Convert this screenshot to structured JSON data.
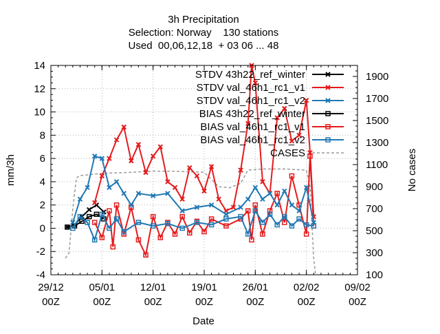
{
  "chart_data": {
    "type": "line",
    "title_lines": [
      "3h Precipitation",
      "Selection: Norway    130 stations",
      "Used  00,06,12,18  + 03 06 ... 48"
    ],
    "xlabel": "Date",
    "ylabel": "mm/3h",
    "y2label": "No cases",
    "xlim": [
      "2021-12-29T00:00",
      "2022-02-09T00:00"
    ],
    "ylim": [
      -4,
      14
    ],
    "y2lim": [
      100,
      2000
    ],
    "xticks": [
      {
        "date": "2021-12-29T00:00",
        "line1": "29/12",
        "line2": "00Z"
      },
      {
        "date": "2022-01-05T00:00",
        "line1": "05/01",
        "line2": "00Z"
      },
      {
        "date": "2022-01-12T00:00",
        "line1": "12/01",
        "line2": "00Z"
      },
      {
        "date": "2022-01-19T00:00",
        "line1": "19/01",
        "line2": "00Z"
      },
      {
        "date": "2022-01-26T00:00",
        "line1": "26/01",
        "line2": "00Z"
      },
      {
        "date": "2022-02-02T00:00",
        "line1": "02/02",
        "line2": "00Z"
      },
      {
        "date": "2022-02-09T00:00",
        "line1": "09/02",
        "line2": "00Z"
      }
    ],
    "yticks": [
      -4,
      -2,
      0,
      2,
      4,
      6,
      8,
      10,
      12,
      14
    ],
    "y2ticks": [
      100,
      300,
      500,
      700,
      900,
      1100,
      1300,
      1500,
      1700,
      1900
    ],
    "grid": true,
    "legend_position": "top-right",
    "series": [
      {
        "name": "STDV 43h22_ref_winter",
        "color": "#000000",
        "marker": "x",
        "axis": "y",
        "points": [
          [
            "2021-12-31T06:00",
            0.1
          ],
          [
            "2022-01-01T06:00",
            0.3
          ],
          [
            "2022-01-02T06:00",
            1.0
          ],
          [
            "2022-01-03T06:00",
            1.6
          ],
          [
            "2022-01-04T06:00",
            2.0
          ],
          [
            "2022-01-05T06:00",
            1.4
          ]
        ]
      },
      {
        "name": "STDV val_46h1_rc1_v1",
        "color": "#e41a1c",
        "marker": "x",
        "axis": "y",
        "points": [
          [
            "2022-01-04T00:00",
            2.2
          ],
          [
            "2022-01-05T00:00",
            4.5
          ],
          [
            "2022-01-06T00:00",
            6.0
          ],
          [
            "2022-01-07T00:00",
            7.6
          ],
          [
            "2022-01-08T00:00",
            8.7
          ],
          [
            "2022-01-09T00:00",
            5.8
          ],
          [
            "2022-01-10T00:00",
            7.2
          ],
          [
            "2022-01-11T00:00",
            4.8
          ],
          [
            "2022-01-12T00:00",
            6.2
          ],
          [
            "2022-01-13T00:00",
            7.0
          ],
          [
            "2022-01-14T00:00",
            4.0
          ],
          [
            "2022-01-15T00:00",
            3.5
          ],
          [
            "2022-01-16T00:00",
            2.5
          ],
          [
            "2022-01-17T00:00",
            5.2
          ],
          [
            "2022-01-18T00:00",
            4.5
          ],
          [
            "2022-01-19T00:00",
            3.2
          ],
          [
            "2022-01-20T00:00",
            5.3
          ],
          [
            "2022-01-21T00:00",
            2.5
          ],
          [
            "2022-01-22T00:00",
            1.5
          ],
          [
            "2022-01-23T00:00",
            1.8
          ],
          [
            "2022-01-24T00:00",
            5.0
          ],
          [
            "2022-01-25T00:00",
            9.0
          ],
          [
            "2022-01-25T12:00",
            14.0
          ],
          [
            "2022-01-26T00:00",
            12.5
          ],
          [
            "2022-01-27T00:00",
            4.0
          ],
          [
            "2022-01-28T00:00",
            3.0
          ],
          [
            "2022-01-29T00:00",
            9.5
          ],
          [
            "2022-01-30T00:00",
            10.3
          ],
          [
            "2022-01-31T00:00",
            7.5
          ],
          [
            "2022-02-01T00:00",
            8.0
          ],
          [
            "2022-02-02T00:00",
            11.0
          ],
          [
            "2022-02-02T12:00",
            6.5
          ],
          [
            "2022-02-03T00:00",
            1.0
          ]
        ]
      },
      {
        "name": "STDV val_46h1_rc1_v2",
        "color": "#1f78b4",
        "marker": "x",
        "axis": "y",
        "points": [
          [
            "2022-01-01T00:00",
            0.5
          ],
          [
            "2022-01-02T00:00",
            2.5
          ],
          [
            "2022-01-03T00:00",
            3.5
          ],
          [
            "2022-01-04T00:00",
            6.2
          ],
          [
            "2022-01-05T00:00",
            6.0
          ],
          [
            "2022-01-06T00:00",
            3.5
          ],
          [
            "2022-01-07T00:00",
            4.0
          ],
          [
            "2022-01-08T00:00",
            3.0
          ],
          [
            "2022-01-09T00:00",
            2.0
          ],
          [
            "2022-01-10T00:00",
            3.0
          ],
          [
            "2022-01-12T00:00",
            2.8
          ],
          [
            "2022-01-14T00:00",
            3.0
          ],
          [
            "2022-01-16T00:00",
            1.5
          ],
          [
            "2022-01-18T00:00",
            1.8
          ],
          [
            "2022-01-20T00:00",
            2.0
          ],
          [
            "2022-01-22T00:00",
            1.2
          ],
          [
            "2022-01-24T00:00",
            1.8
          ],
          [
            "2022-01-25T00:00",
            2.5
          ],
          [
            "2022-01-26T00:00",
            3.5
          ],
          [
            "2022-01-27T00:00",
            2.5
          ],
          [
            "2022-01-28T00:00",
            3.0
          ],
          [
            "2022-01-29T00:00",
            2.0
          ],
          [
            "2022-01-30T00:00",
            3.2
          ],
          [
            "2022-01-31T00:00",
            2.0
          ],
          [
            "2022-02-01T00:00",
            1.5
          ],
          [
            "2022-02-02T00:00",
            3.5
          ],
          [
            "2022-02-03T00:00",
            0.5
          ]
        ]
      },
      {
        "name": "BIAS 43h22_ref_winter",
        "color": "#000000",
        "marker": "square",
        "axis": "y",
        "points": [
          [
            "2021-12-31T06:00",
            0.1
          ],
          [
            "2022-01-01T06:00",
            0.2
          ],
          [
            "2022-01-02T06:00",
            0.6
          ],
          [
            "2022-01-03T06:00",
            1.0
          ],
          [
            "2022-01-04T06:00",
            1.2
          ],
          [
            "2022-01-05T06:00",
            0.8
          ]
        ]
      },
      {
        "name": "BIAS val_46h1_rc1_v1",
        "color": "#e41a1c",
        "marker": "square",
        "axis": "y",
        "points": [
          [
            "2022-01-04T00:00",
            0.5
          ],
          [
            "2022-01-05T00:00",
            -0.8
          ],
          [
            "2022-01-06T00:00",
            1.5
          ],
          [
            "2022-01-06T12:00",
            -1.6
          ],
          [
            "2022-01-07T00:00",
            2.0
          ],
          [
            "2022-01-08T00:00",
            -0.5
          ],
          [
            "2022-01-09T00:00",
            1.8
          ],
          [
            "2022-01-10T00:00",
            -1.0
          ],
          [
            "2022-01-11T00:00",
            -2.3
          ],
          [
            "2022-01-12T00:00",
            1.0
          ],
          [
            "2022-01-13T00:00",
            -0.8
          ],
          [
            "2022-01-14T00:00",
            0.5
          ],
          [
            "2022-01-15T00:00",
            -0.5
          ],
          [
            "2022-01-16T00:00",
            1.0
          ],
          [
            "2022-01-17T00:00",
            -0.4
          ],
          [
            "2022-01-18T00:00",
            0.6
          ],
          [
            "2022-01-19T00:00",
            -0.3
          ],
          [
            "2022-01-20T00:00",
            0.8
          ],
          [
            "2022-01-22T00:00",
            0.2
          ],
          [
            "2022-01-24T00:00",
            0.8
          ],
          [
            "2022-01-25T00:00",
            1.5
          ],
          [
            "2022-01-25T12:00",
            -1.0
          ],
          [
            "2022-01-26T00:00",
            2.0
          ],
          [
            "2022-01-27T00:00",
            -0.5
          ],
          [
            "2022-01-28T00:00",
            1.5
          ],
          [
            "2022-01-29T00:00",
            3.0
          ],
          [
            "2022-01-30T00:00",
            0.5
          ],
          [
            "2022-01-31T00:00",
            4.5
          ],
          [
            "2022-02-01T00:00",
            2.0
          ],
          [
            "2022-02-02T00:00",
            -0.5
          ],
          [
            "2022-02-02T12:00",
            6.2
          ],
          [
            "2022-02-03T00:00",
            0.2
          ]
        ]
      },
      {
        "name": "BIAS val_46h1_rc1_v2",
        "color": "#1f78b4",
        "marker": "square",
        "axis": "y",
        "points": [
          [
            "2022-01-01T00:00",
            0.0
          ],
          [
            "2022-01-02T00:00",
            1.0
          ],
          [
            "2022-01-03T00:00",
            0.5
          ],
          [
            "2022-01-04T00:00",
            -1.0
          ],
          [
            "2022-01-05T00:00",
            1.2
          ],
          [
            "2022-01-06T00:00",
            0.0
          ],
          [
            "2022-01-07T00:00",
            0.8
          ],
          [
            "2022-01-08T00:00",
            -0.3
          ],
          [
            "2022-01-10T00:00",
            0.5
          ],
          [
            "2022-01-12T00:00",
            0.2
          ],
          [
            "2022-01-14T00:00",
            0.4
          ],
          [
            "2022-01-16T00:00",
            0.0
          ],
          [
            "2022-01-18T00:00",
            0.5
          ],
          [
            "2022-01-20T00:00",
            0.3
          ],
          [
            "2022-01-22T00:00",
            0.8
          ],
          [
            "2022-01-24T00:00",
            1.0
          ],
          [
            "2022-01-25T00:00",
            -0.5
          ],
          [
            "2022-01-26T00:00",
            1.5
          ],
          [
            "2022-01-27T00:00",
            0.5
          ],
          [
            "2022-01-28T00:00",
            1.2
          ],
          [
            "2022-01-29T00:00",
            0.3
          ],
          [
            "2022-01-30T00:00",
            1.0
          ],
          [
            "2022-01-31T00:00",
            0.2
          ],
          [
            "2022-02-01T00:00",
            0.8
          ],
          [
            "2022-02-02T00:00",
            0.3
          ],
          [
            "2022-02-03T00:00",
            0.2
          ]
        ]
      },
      {
        "name": "CASES",
        "color": "#999999",
        "marker": "none",
        "dash": true,
        "axis": "y2",
        "points": [
          [
            "2021-12-31T00:00",
            250
          ],
          [
            "2021-12-31T12:00",
            300
          ],
          [
            "2022-01-01T00:00",
            700
          ],
          [
            "2022-01-01T12:00",
            980
          ],
          [
            "2022-01-02T00:00",
            1000
          ],
          [
            "2022-01-05T00:00",
            1020
          ],
          [
            "2022-01-09T00:00",
            1030
          ],
          [
            "2022-01-12T00:00",
            1040
          ],
          [
            "2022-01-15T00:00",
            1040
          ],
          [
            "2022-01-19T00:00",
            1030
          ],
          [
            "2022-01-21T00:00",
            900
          ],
          [
            "2022-01-22T12:00",
            890
          ],
          [
            "2022-01-24T00:00",
            930
          ],
          [
            "2022-01-25T00:00",
            1050
          ],
          [
            "2022-01-27T00:00",
            1060
          ],
          [
            "2022-01-30T00:00",
            1060
          ],
          [
            "2022-02-02T00:00",
            1050
          ],
          [
            "2022-02-02T12:00",
            900
          ],
          [
            "2022-02-03T00:00",
            250
          ],
          [
            "2022-02-03T06:00",
            100
          ]
        ]
      }
    ]
  }
}
